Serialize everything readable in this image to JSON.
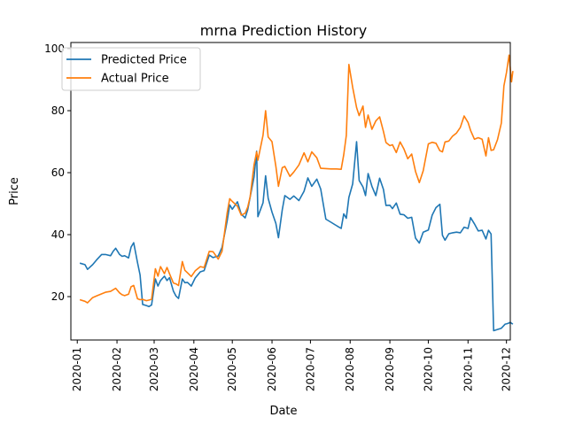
{
  "chart_data": {
    "type": "line",
    "title": "mrna Prediction History",
    "xlabel": "Date",
    "ylabel": "Price",
    "xlim": [
      "2019-12-27",
      "2020-12-04"
    ],
    "ylim": [
      6,
      102
    ],
    "x_ticks": [
      "2020-01-01",
      "2020-02-01",
      "2020-03-01",
      "2020-04-01",
      "2020-05-01",
      "2020-06-01",
      "2020-07-01",
      "2020-08-01",
      "2020-09-01",
      "2020-10-01",
      "2020-11-01",
      "2020-12-01"
    ],
    "x_tick_labels": [
      "2020-01",
      "2020-02",
      "2020-03",
      "2020-04",
      "2020-05",
      "2020-06",
      "2020-07",
      "2020-08",
      "2020-09",
      "2020-10",
      "2020-11",
      "2020-12"
    ],
    "y_ticks": [
      20,
      40,
      60,
      80,
      100
    ],
    "y_tick_labels": [
      "20",
      "40",
      "60",
      "80",
      "100"
    ],
    "grid": false,
    "legend": "upper-left",
    "series": [
      {
        "name": "Predicted Price",
        "color": "#1f77b4",
        "points": [
          [
            "2020-01-03",
            30.8
          ],
          [
            "2020-01-07",
            30.3
          ],
          [
            "2020-01-09",
            28.8
          ],
          [
            "2020-01-13",
            30.3
          ],
          [
            "2020-01-16",
            31.8
          ],
          [
            "2020-01-20",
            33.6
          ],
          [
            "2020-01-23",
            33.6
          ],
          [
            "2020-01-27",
            33.2
          ],
          [
            "2020-01-29",
            34.6
          ],
          [
            "2020-01-31",
            35.6
          ],
          [
            "2020-02-03",
            33.6
          ],
          [
            "2020-02-05",
            33.0
          ],
          [
            "2020-02-07",
            33.2
          ],
          [
            "2020-02-10",
            32.5
          ],
          [
            "2020-02-12",
            36.0
          ],
          [
            "2020-02-14",
            37.4
          ],
          [
            "2020-02-17",
            31.0
          ],
          [
            "2020-02-19",
            27.0
          ],
          [
            "2020-02-21",
            17.5
          ],
          [
            "2020-02-24",
            17.1
          ],
          [
            "2020-02-26",
            16.8
          ],
          [
            "2020-02-28",
            17.3
          ],
          [
            "2020-03-02",
            25.7
          ],
          [
            "2020-03-04",
            23.4
          ],
          [
            "2020-03-06",
            25.2
          ],
          [
            "2020-03-09",
            26.6
          ],
          [
            "2020-03-11",
            25.2
          ],
          [
            "2020-03-13",
            26.1
          ],
          [
            "2020-03-16",
            21.8
          ],
          [
            "2020-03-18",
            20.2
          ],
          [
            "2020-03-20",
            19.4
          ],
          [
            "2020-03-23",
            25.7
          ],
          [
            "2020-03-25",
            24.5
          ],
          [
            "2020-03-27",
            24.6
          ],
          [
            "2020-03-30",
            23.4
          ],
          [
            "2020-04-02",
            26.0
          ],
          [
            "2020-04-06",
            28.0
          ],
          [
            "2020-04-09",
            28.4
          ],
          [
            "2020-04-13",
            33.4
          ],
          [
            "2020-04-16",
            32.6
          ],
          [
            "2020-04-20",
            33.1
          ],
          [
            "2020-04-23",
            35.9
          ],
          [
            "2020-04-27",
            44.4
          ],
          [
            "2020-04-29",
            49.6
          ],
          [
            "2020-05-01",
            48.2
          ],
          [
            "2020-05-05",
            50.6
          ],
          [
            "2020-05-08",
            46.6
          ],
          [
            "2020-05-11",
            45.4
          ],
          [
            "2020-05-13",
            48.0
          ],
          [
            "2020-05-15",
            52.2
          ],
          [
            "2020-05-18",
            58.7
          ],
          [
            "2020-05-20",
            66.9
          ],
          [
            "2020-05-21",
            45.8
          ],
          [
            "2020-05-25",
            50.3
          ],
          [
            "2020-05-27",
            59.0
          ],
          [
            "2020-05-29",
            51.7
          ],
          [
            "2020-06-01",
            47.3
          ],
          [
            "2020-06-04",
            43.6
          ],
          [
            "2020-06-06",
            39.0
          ],
          [
            "2020-06-09",
            48.0
          ],
          [
            "2020-06-11",
            52.6
          ],
          [
            "2020-06-15",
            51.4
          ],
          [
            "2020-06-18",
            52.5
          ],
          [
            "2020-06-22",
            51.0
          ],
          [
            "2020-06-26",
            54.0
          ],
          [
            "2020-06-29",
            58.3
          ],
          [
            "2020-07-02",
            55.6
          ],
          [
            "2020-07-06",
            57.9
          ],
          [
            "2020-07-09",
            54.7
          ],
          [
            "2020-07-13",
            45.0
          ],
          [
            "2020-07-17",
            44.0
          ],
          [
            "2020-07-21",
            43.0
          ],
          [
            "2020-07-25",
            42.0
          ],
          [
            "2020-07-27",
            46.7
          ],
          [
            "2020-07-29",
            45.3
          ],
          [
            "2020-07-31",
            52.0
          ],
          [
            "2020-08-03",
            56.4
          ],
          [
            "2020-08-06",
            70.0
          ],
          [
            "2020-08-08",
            57.5
          ],
          [
            "2020-08-11",
            55.4
          ],
          [
            "2020-08-13",
            52.6
          ],
          [
            "2020-08-15",
            59.7
          ],
          [
            "2020-08-18",
            55.6
          ],
          [
            "2020-08-21",
            52.6
          ],
          [
            "2020-08-24",
            58.2
          ],
          [
            "2020-08-27",
            54.6
          ],
          [
            "2020-08-29",
            49.4
          ],
          [
            "2020-09-01",
            49.5
          ],
          [
            "2020-09-03",
            48.4
          ],
          [
            "2020-09-06",
            50.2
          ],
          [
            "2020-09-09",
            46.6
          ],
          [
            "2020-09-12",
            46.4
          ],
          [
            "2020-09-15",
            45.3
          ],
          [
            "2020-09-18",
            45.6
          ],
          [
            "2020-09-21",
            38.9
          ],
          [
            "2020-09-24",
            37.3
          ],
          [
            "2020-09-27",
            40.8
          ],
          [
            "2020-10-01",
            41.5
          ],
          [
            "2020-10-04",
            46.3
          ],
          [
            "2020-10-07",
            48.7
          ],
          [
            "2020-10-10",
            49.8
          ],
          [
            "2020-10-12",
            39.8
          ],
          [
            "2020-10-14",
            38.2
          ],
          [
            "2020-10-17",
            40.3
          ],
          [
            "2020-10-20",
            40.6
          ],
          [
            "2020-10-23",
            40.8
          ],
          [
            "2020-10-26",
            40.6
          ],
          [
            "2020-10-29",
            42.4
          ],
          [
            "2020-11-01",
            42.0
          ],
          [
            "2020-11-03",
            45.5
          ],
          [
            "2020-11-06",
            43.5
          ],
          [
            "2020-11-09",
            41.2
          ],
          [
            "2020-11-12",
            41.4
          ],
          [
            "2020-11-15",
            38.6
          ],
          [
            "2020-11-17",
            41.4
          ],
          [
            "2020-11-19",
            40.2
          ],
          [
            "2020-11-21",
            9.0
          ],
          [
            "2020-11-24",
            9.4
          ],
          [
            "2020-11-27",
            9.8
          ],
          [
            "2020-11-30",
            11.1
          ],
          [
            "2020-12-02",
            11.3
          ],
          [
            "2020-12-04",
            11.7
          ],
          [
            "2020-12-06",
            11.1
          ]
        ]
      },
      {
        "name": "Actual Price",
        "color": "#ff7f0e",
        "points": [
          [
            "2020-01-03",
            19.0
          ],
          [
            "2020-01-07",
            18.5
          ],
          [
            "2020-01-09",
            18.0
          ],
          [
            "2020-01-13",
            19.7
          ],
          [
            "2020-01-16",
            20.2
          ],
          [
            "2020-01-20",
            20.9
          ],
          [
            "2020-01-23",
            21.4
          ],
          [
            "2020-01-27",
            21.7
          ],
          [
            "2020-01-29",
            22.2
          ],
          [
            "2020-01-31",
            22.7
          ],
          [
            "2020-02-03",
            21.2
          ],
          [
            "2020-02-05",
            20.6
          ],
          [
            "2020-02-07",
            20.3
          ],
          [
            "2020-02-10",
            20.8
          ],
          [
            "2020-02-12",
            23.2
          ],
          [
            "2020-02-14",
            23.6
          ],
          [
            "2020-02-17",
            19.3
          ],
          [
            "2020-02-19",
            19.0
          ],
          [
            "2020-02-21",
            19.1
          ],
          [
            "2020-02-24",
            18.7
          ],
          [
            "2020-02-26",
            18.9
          ],
          [
            "2020-02-28",
            19.1
          ],
          [
            "2020-03-02",
            29.0
          ],
          [
            "2020-03-04",
            26.6
          ],
          [
            "2020-03-06",
            29.7
          ],
          [
            "2020-03-09",
            27.4
          ],
          [
            "2020-03-11",
            29.4
          ],
          [
            "2020-03-13",
            27.4
          ],
          [
            "2020-03-16",
            24.4
          ],
          [
            "2020-03-18",
            24.1
          ],
          [
            "2020-03-20",
            23.6
          ],
          [
            "2020-03-23",
            31.3
          ],
          [
            "2020-03-25",
            28.5
          ],
          [
            "2020-03-27",
            27.7
          ],
          [
            "2020-03-30",
            26.5
          ],
          [
            "2020-04-02",
            28.3
          ],
          [
            "2020-04-06",
            29.7
          ],
          [
            "2020-04-09",
            29.4
          ],
          [
            "2020-04-13",
            34.6
          ],
          [
            "2020-04-16",
            34.5
          ],
          [
            "2020-04-20",
            32.1
          ],
          [
            "2020-04-23",
            34.6
          ],
          [
            "2020-04-27",
            47.0
          ],
          [
            "2020-04-29",
            51.6
          ],
          [
            "2020-05-01",
            50.7
          ],
          [
            "2020-05-05",
            49.2
          ],
          [
            "2020-05-08",
            46.3
          ],
          [
            "2020-05-11",
            46.9
          ],
          [
            "2020-05-13",
            48.9
          ],
          [
            "2020-05-15",
            52.3
          ],
          [
            "2020-05-18",
            62.6
          ],
          [
            "2020-05-20",
            66.7
          ],
          [
            "2020-05-21",
            64.0
          ],
          [
            "2020-05-25",
            72.1
          ],
          [
            "2020-05-27",
            80.0
          ],
          [
            "2020-05-29",
            71.5
          ],
          [
            "2020-06-01",
            70.0
          ],
          [
            "2020-06-04",
            62.0
          ],
          [
            "2020-06-06",
            55.6
          ],
          [
            "2020-06-09",
            61.6
          ],
          [
            "2020-06-11",
            62.0
          ],
          [
            "2020-06-15",
            58.8
          ],
          [
            "2020-06-18",
            60.2
          ],
          [
            "2020-06-22",
            62.5
          ],
          [
            "2020-06-26",
            66.4
          ],
          [
            "2020-06-29",
            63.5
          ],
          [
            "2020-07-02",
            66.7
          ],
          [
            "2020-07-06",
            64.8
          ],
          [
            "2020-07-09",
            61.4
          ],
          [
            "2020-07-13",
            61.3
          ],
          [
            "2020-07-17",
            61.2
          ],
          [
            "2020-07-21",
            61.2
          ],
          [
            "2020-07-25",
            61.1
          ],
          [
            "2020-07-27",
            65.8
          ],
          [
            "2020-07-29",
            72.0
          ],
          [
            "2020-07-31",
            94.9
          ],
          [
            "2020-08-03",
            87.5
          ],
          [
            "2020-08-06",
            81.0
          ],
          [
            "2020-08-08",
            78.4
          ],
          [
            "2020-08-11",
            81.5
          ],
          [
            "2020-08-13",
            74.6
          ],
          [
            "2020-08-15",
            78.6
          ],
          [
            "2020-08-18",
            74.0
          ],
          [
            "2020-08-21",
            76.7
          ],
          [
            "2020-08-24",
            78.0
          ],
          [
            "2020-08-27",
            73.3
          ],
          [
            "2020-08-29",
            69.7
          ],
          [
            "2020-09-01",
            68.7
          ],
          [
            "2020-09-03",
            69.0
          ],
          [
            "2020-09-06",
            66.5
          ],
          [
            "2020-09-09",
            69.9
          ],
          [
            "2020-09-12",
            67.6
          ],
          [
            "2020-09-15",
            64.5
          ],
          [
            "2020-09-18",
            66.0
          ],
          [
            "2020-09-21",
            60.4
          ],
          [
            "2020-09-24",
            56.8
          ],
          [
            "2020-09-27",
            60.6
          ],
          [
            "2020-10-01",
            69.3
          ],
          [
            "2020-10-04",
            69.8
          ],
          [
            "2020-10-07",
            69.5
          ],
          [
            "2020-10-10",
            67.1
          ],
          [
            "2020-10-12",
            66.7
          ],
          [
            "2020-10-14",
            69.9
          ],
          [
            "2020-10-17",
            70.2
          ],
          [
            "2020-10-20",
            71.8
          ],
          [
            "2020-10-23",
            72.8
          ],
          [
            "2020-10-26",
            74.6
          ],
          [
            "2020-10-29",
            78.3
          ],
          [
            "2020-11-01",
            76.2
          ],
          [
            "2020-11-03",
            73.6
          ],
          [
            "2020-11-06",
            70.8
          ],
          [
            "2020-11-09",
            71.3
          ],
          [
            "2020-11-12",
            70.8
          ],
          [
            "2020-11-15",
            65.4
          ],
          [
            "2020-11-17",
            71.3
          ],
          [
            "2020-11-19",
            67.2
          ],
          [
            "2020-11-21",
            67.4
          ],
          [
            "2020-11-24",
            70.6
          ],
          [
            "2020-11-27",
            76.0
          ],
          [
            "2020-11-29",
            88.0
          ],
          [
            "2020-12-01",
            92.3
          ],
          [
            "2020-12-03",
            97.9
          ],
          [
            "2020-12-05",
            89.3
          ],
          [
            "2020-12-06",
            92.8
          ]
        ]
      }
    ]
  }
}
